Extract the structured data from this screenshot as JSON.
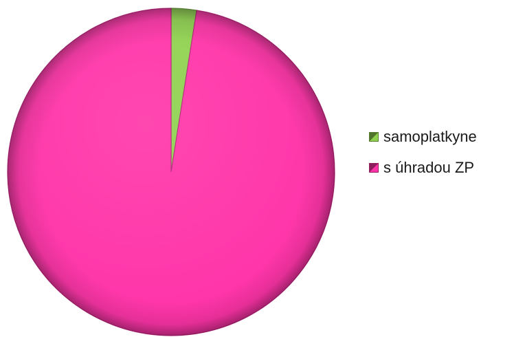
{
  "chart_data": {
    "type": "pie",
    "title": "",
    "legend_position": "right",
    "slices": [
      {
        "label": "samoplatkyne",
        "value": 2.5,
        "color": "#8fd14f"
      },
      {
        "label": "s úhradou ZP",
        "value": 97.5,
        "color": "#ff33a8"
      }
    ],
    "start_angle_deg": 0,
    "direction": "clockwise",
    "style": "3d-bevel"
  }
}
